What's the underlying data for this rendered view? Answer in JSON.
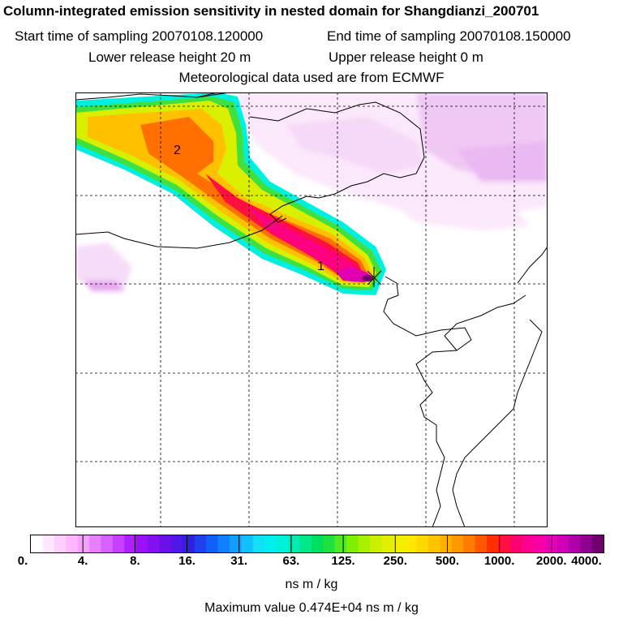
{
  "header": {
    "title": "Column-integrated emission sensitivity in nested domain for Shangdianzi_200701",
    "sampling_start": "Start time of sampling 20070108.120000",
    "sampling_end": "End time of sampling 20070108.150000",
    "lower_release": "Lower release height   20 m",
    "upper_release": "Upper release height    0 m",
    "met_data": "Meteorological data used are from ECMWF"
  },
  "map": {
    "labels": [
      {
        "id": "label-2",
        "text": "2"
      },
      {
        "id": "label-1",
        "text": "1"
      }
    ]
  },
  "colorbar": {
    "tick_labels": [
      "0.",
      "4.",
      "8.",
      "16.",
      "31.",
      "63.",
      "125.",
      "250.",
      "500.",
      "1000.",
      "2000.",
      "4000."
    ],
    "colors": [
      "#ffffff",
      "#ffe8ff",
      "#ffd0ff",
      "#ffb8ff",
      "#f5a0ff",
      "#e680ff",
      "#d860ff",
      "#c840ff",
      "#b020ff",
      "#9a10f8",
      "#8410f0",
      "#6a10e8",
      "#5018e8",
      "#3020e0",
      "#2040f0",
      "#1060f8",
      "#1080ff",
      "#10a0ff",
      "#10c0ff",
      "#10e0f8",
      "#00f0f0",
      "#00f0d8",
      "#00ecb0",
      "#00e888",
      "#00e060",
      "#20e040",
      "#50e820",
      "#80f000",
      "#a8f000",
      "#c8f000",
      "#e0f000",
      "#f0f000",
      "#ffe800",
      "#ffd800",
      "#ffc400",
      "#ffb000",
      "#ff9800",
      "#ff7c00",
      "#ff5800",
      "#ff3000",
      "#ff1040",
      "#ff0070",
      "#ff0090",
      "#f800a8",
      "#e800b8",
      "#d000b8",
      "#b000a8",
      "#900090",
      "#700070"
    ],
    "units": "ns m / kg",
    "max_value": "Maximum value  0.474E+04 ns m / kg"
  }
}
